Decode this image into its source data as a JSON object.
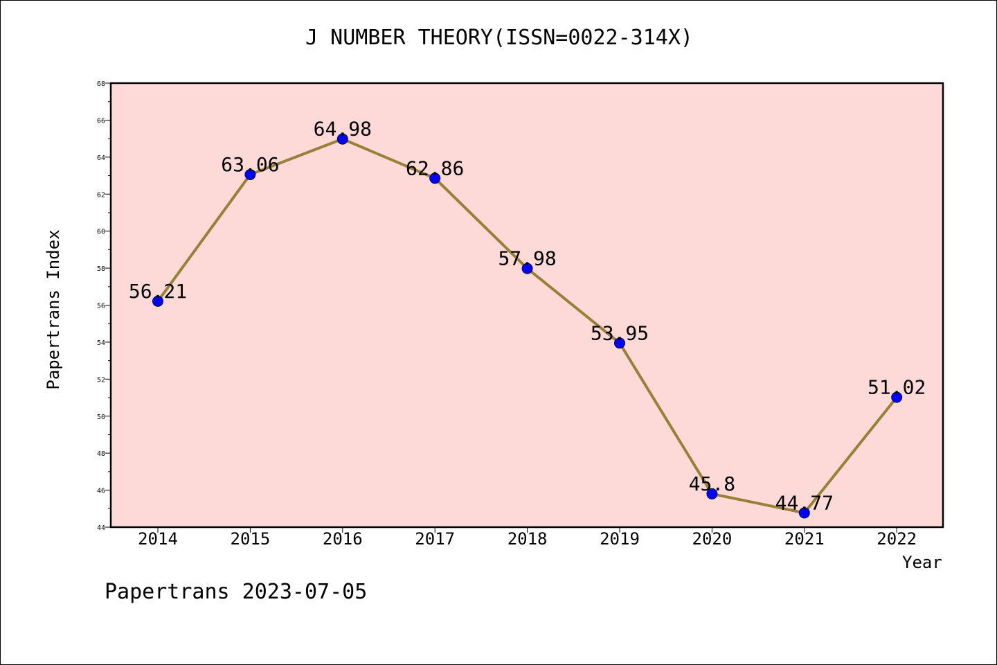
{
  "chart_data": {
    "type": "line",
    "title": "J NUMBER THEORY(ISSN=0022-314X)",
    "xlabel": "Year",
    "ylabel": "Papertrans Index",
    "categories": [
      "2014",
      "2015",
      "2016",
      "2017",
      "2018",
      "2019",
      "2020",
      "2021",
      "2022"
    ],
    "series": [
      {
        "values": [
          56.21,
          63.06,
          64.98,
          62.86,
          57.98,
          53.95,
          45.8,
          44.77,
          51.02
        ],
        "data_labels": [
          "56.21",
          "63.06",
          "64.98",
          "62.86",
          "57.98",
          "53.95",
          "45.8",
          "44.77",
          "51.02"
        ]
      }
    ],
    "ylim": [
      44,
      68
    ],
    "yticks": [
      "44",
      "46",
      "48",
      "50",
      "52",
      "54",
      "56",
      "58",
      "60",
      "62",
      "64",
      "66",
      "68"
    ],
    "grid": false,
    "legend": "none",
    "colors": {
      "plot_background": "#fddad7",
      "line": "#978139",
      "marker": "#0000ff",
      "axis": "#000000"
    }
  },
  "footer": {
    "note": "Papertrans 2023-07-05"
  }
}
